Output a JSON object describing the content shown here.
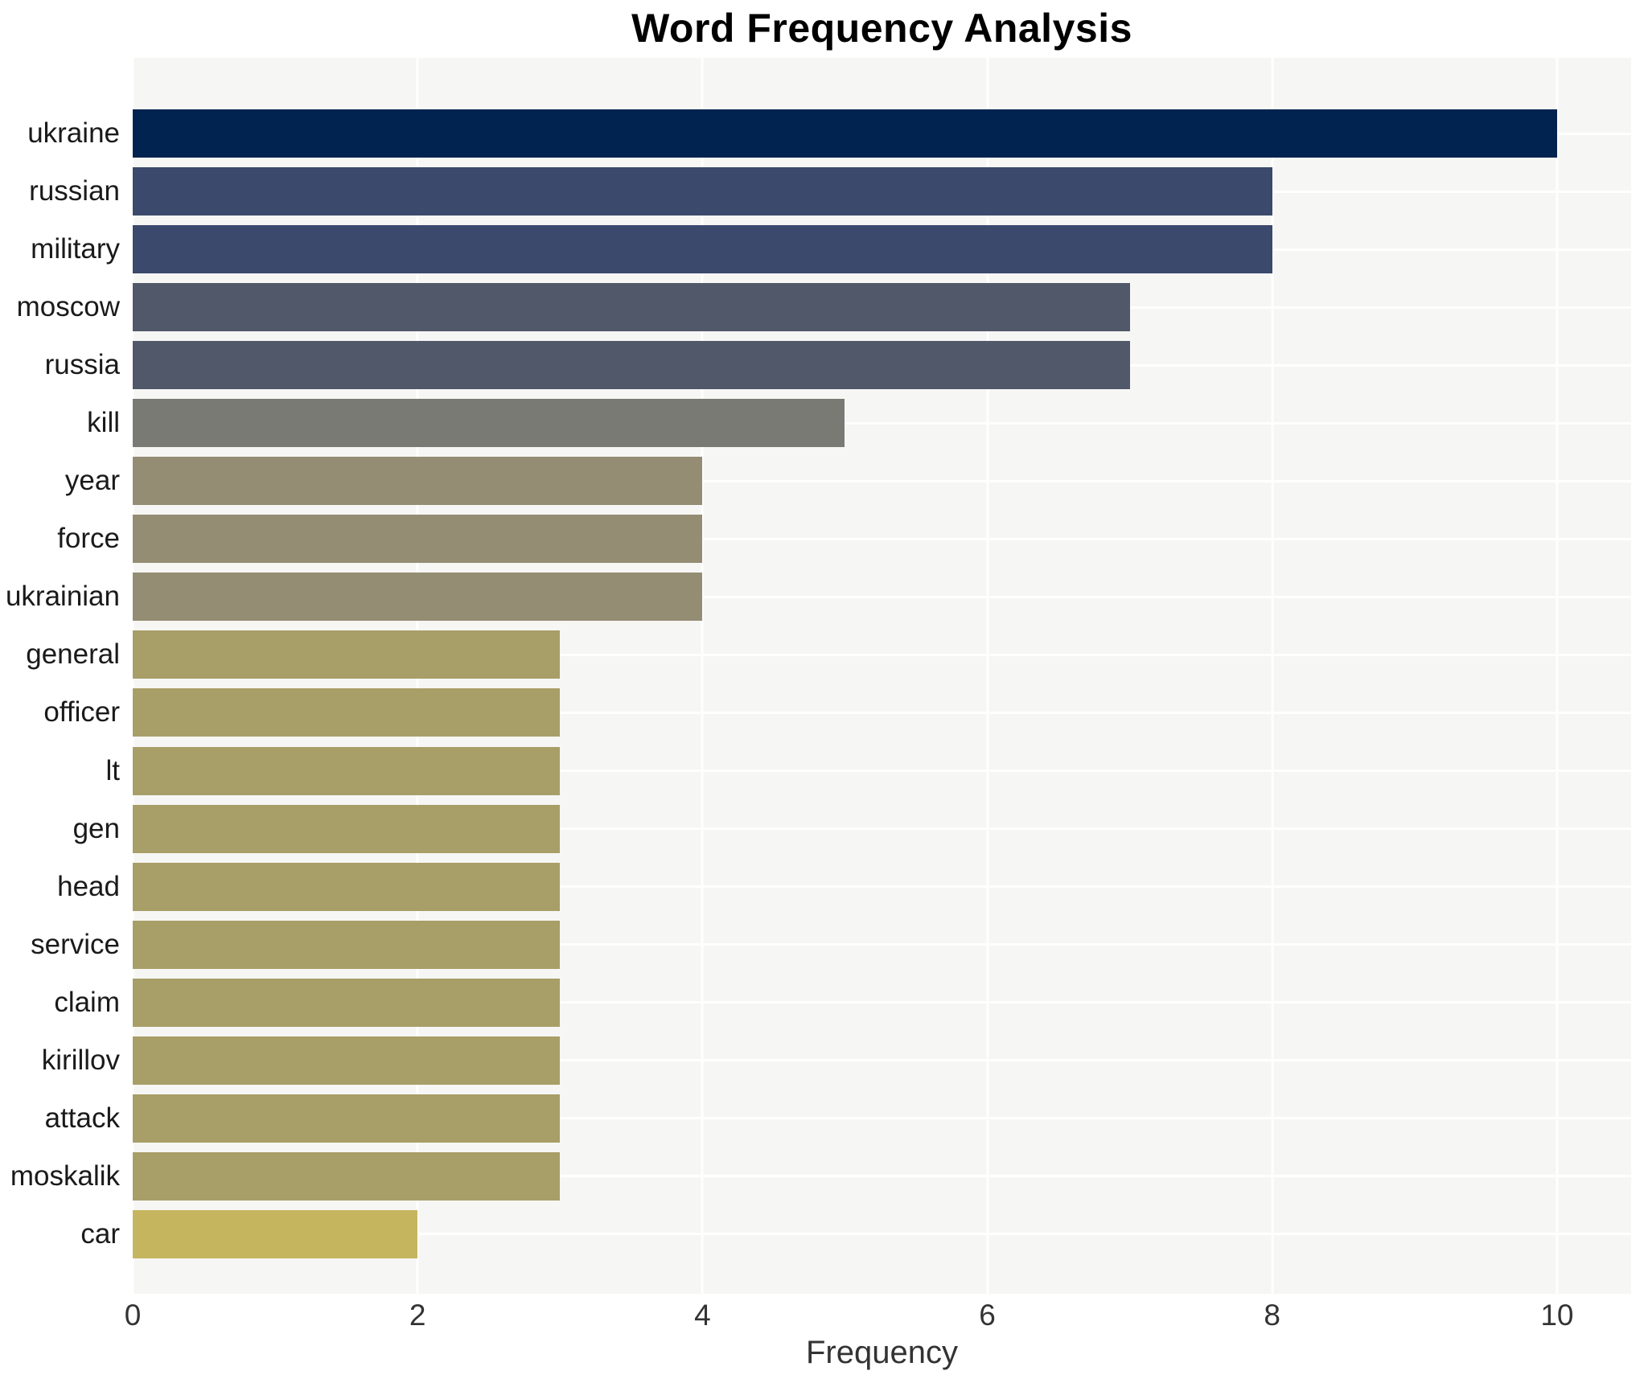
{
  "chart_data": {
    "type": "bar",
    "orientation": "horizontal",
    "title": "Word Frequency Analysis",
    "xlabel": "Frequency",
    "ylabel": "",
    "xlim": [
      0,
      10.52
    ],
    "xticks": [
      0,
      2,
      4,
      6,
      8,
      10
    ],
    "grid": true,
    "legend_position": "none",
    "plot_background_color": "#f6f6f4",
    "grid_color": "#ffffff",
    "title_color": "#000000",
    "tick_label_color": "#333333",
    "category_label_color": "#1a1a1a",
    "categories": [
      "ukraine",
      "russian",
      "military",
      "moscow",
      "russia",
      "kill",
      "year",
      "force",
      "ukrainian",
      "general",
      "officer",
      "lt",
      "gen",
      "head",
      "service",
      "claim",
      "kirillov",
      "attack",
      "moskalik",
      "car"
    ],
    "values": [
      10,
      8,
      8,
      7,
      7,
      5,
      4,
      4,
      4,
      3,
      3,
      3,
      3,
      3,
      3,
      3,
      3,
      3,
      3,
      2
    ],
    "bar_colors": [
      "#01234f",
      "#3a496c",
      "#3a496c",
      "#505869",
      "#505869",
      "#7a7a74",
      "#948d74",
      "#948d74",
      "#948d74",
      "#a89e67",
      "#a89e67",
      "#a89e67",
      "#a89e67",
      "#a89e67",
      "#a89e67",
      "#a89e67",
      "#a89e67",
      "#a89e67",
      "#a89e67",
      "#c5b55f"
    ]
  }
}
